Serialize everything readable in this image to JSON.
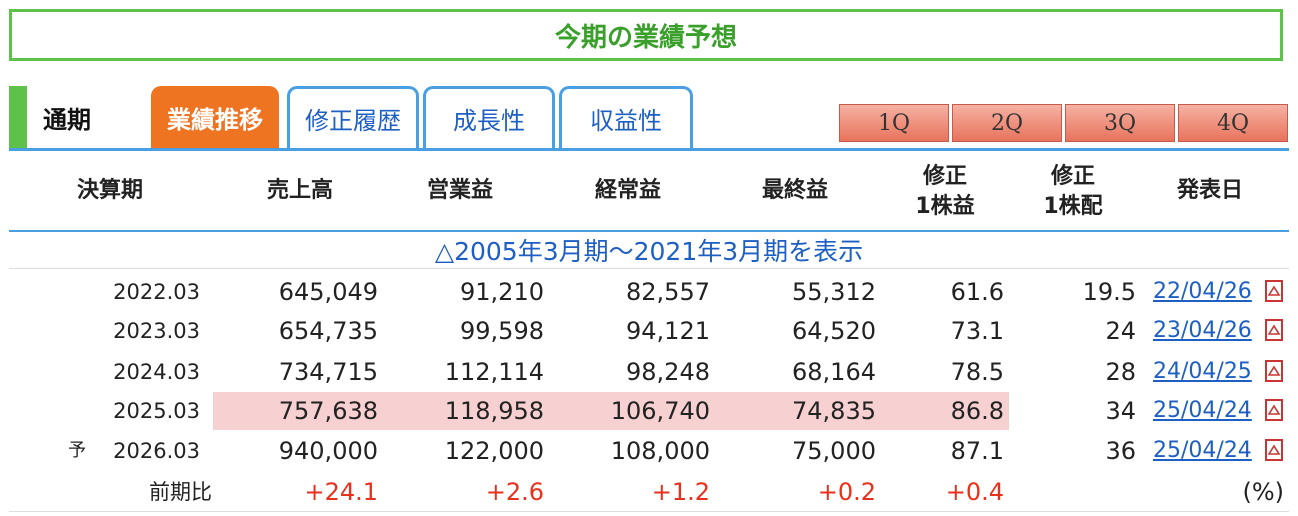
{
  "page_title": "今期の業績予想",
  "tabs": {
    "period_label": "通期",
    "items": [
      "業績推移",
      "修正履歴",
      "成長性",
      "収益性"
    ],
    "quarters": [
      "1Q",
      "2Q",
      "3Q",
      "4Q"
    ]
  },
  "table": {
    "headers": {
      "period": "決算期",
      "sales": "売上高",
      "operating": "営業益",
      "ordinary": "経常益",
      "net": "最終益",
      "eps_l1": "修正",
      "eps_l2": "1株益",
      "div_l1": "修正",
      "div_l2": "1株配",
      "date": "発表日"
    },
    "expand_link": "△2005年3月期～2021年3月期を表示",
    "rows": [
      {
        "period": "2022.03",
        "sales": "645,049",
        "operating": "91,210",
        "ordinary": "82,557",
        "net": "55,312",
        "eps": "61.6",
        "dividend": "19.5",
        "date": "22/04/26"
      },
      {
        "period": "2023.03",
        "sales": "654,735",
        "operating": "99,598",
        "ordinary": "94,121",
        "net": "64,520",
        "eps": "73.1",
        "dividend": "24",
        "date": "23/04/26"
      },
      {
        "period": "2024.03",
        "sales": "734,715",
        "operating": "112,114",
        "ordinary": "98,248",
        "net": "68,164",
        "eps": "78.5",
        "dividend": "28",
        "date": "24/04/25"
      },
      {
        "period": "2025.03",
        "sales": "757,638",
        "operating": "118,958",
        "ordinary": "106,740",
        "net": "74,835",
        "eps": "86.8",
        "dividend": "34",
        "date": "25/04/24"
      },
      {
        "prefix": "予",
        "period": "2026.03",
        "sales": "940,000",
        "operating": "122,000",
        "ordinary": "108,000",
        "net": "75,000",
        "eps": "87.1",
        "dividend": "36",
        "date": "25/04/24"
      }
    ],
    "yoy": {
      "label": "前期比",
      "sales": "+24.1",
      "operating": "+2.6",
      "ordinary": "+1.2",
      "net": "+0.2",
      "eps": "+0.4",
      "unit": "(%)"
    }
  },
  "colors": {
    "green": "#5ec24a",
    "orange": "#ef7421",
    "blue": "#4a9fe2",
    "link": "#1d5fc2",
    "highlight": "#f7d1d1",
    "red": "#e8301c"
  },
  "icons": {
    "pdf": "pdf-icon"
  }
}
